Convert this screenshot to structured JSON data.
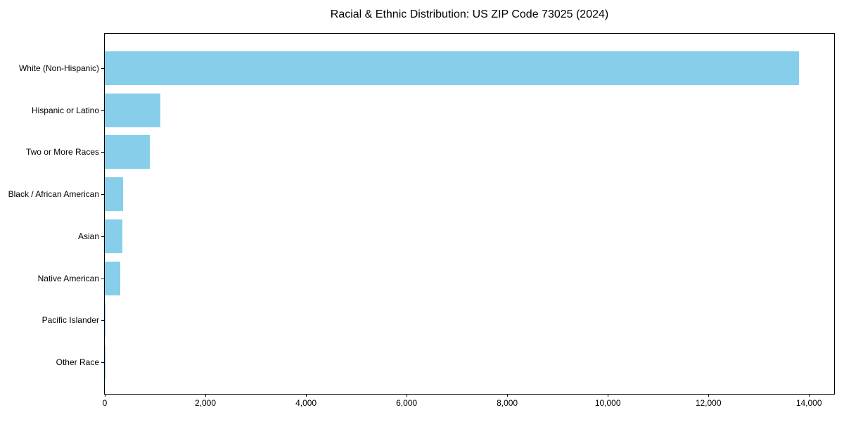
{
  "title": "Racial & Ethnic Distribution: US ZIP Code 73025 (2024)",
  "colors": {
    "bar": "#87CEEB",
    "axis": "#000000",
    "background": "#FFFFFF",
    "text": "#000000"
  },
  "chart_data": {
    "type": "bar",
    "orientation": "horizontal",
    "title": "Racial & Ethnic Distribution: US ZIP Code 73025 (2024)",
    "categories": [
      "White (Non-Hispanic)",
      "Hispanic or Latino",
      "Two or More Races",
      "Black / African American",
      "Asian",
      "Native American",
      "Pacific Islander",
      "Other Race"
    ],
    "values": [
      13800,
      1100,
      890,
      360,
      350,
      310,
      15,
      4
    ],
    "xlabel": "",
    "ylabel": "",
    "xlim": [
      0,
      14500
    ],
    "x_ticks": [
      0,
      2000,
      4000,
      6000,
      8000,
      10000,
      12000,
      14000
    ],
    "x_tick_labels": [
      "0",
      "2,000",
      "4,000",
      "6,000",
      "8,000",
      "10,000",
      "12,000",
      "14,000"
    ],
    "grid": false,
    "legend": "none",
    "bar_color": "#87CEEB"
  }
}
